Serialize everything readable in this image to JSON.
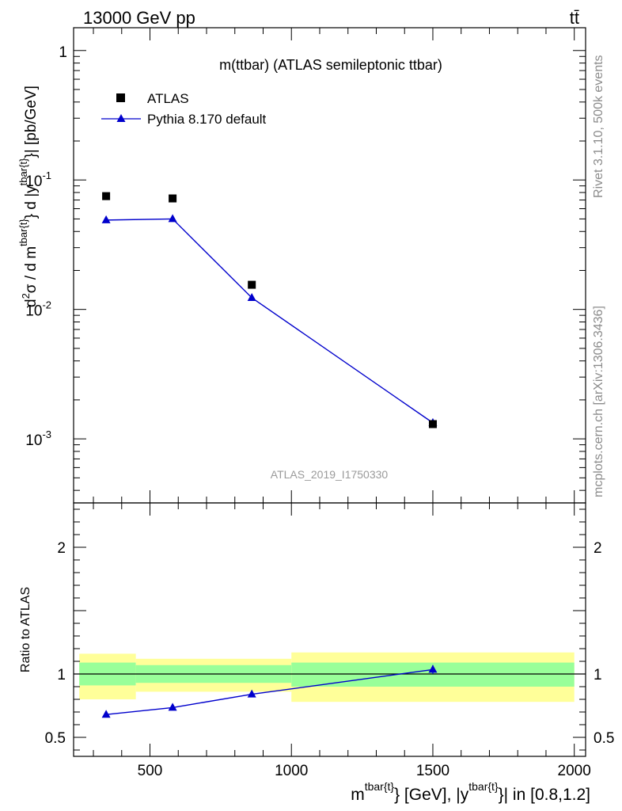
{
  "header": {
    "energy_label": "13000 GeV pp",
    "process_label": "tt̄"
  },
  "side_text": {
    "rivet": "Rivet 3.1.10,  500k events",
    "mcplots": "mcplots.cern.ch [arXiv:1306.3436]"
  },
  "chart_data": [
    {
      "type": "scatter",
      "panel": "main",
      "title": "m(ttbar) (ATLAS semileptonic ttbar)",
      "watermark": "ATLAS_2019_I1750330",
      "ylabel": "d²σ / d m^{tbar{t}} d |y^{tbar{t}}| [pb/GeV]",
      "yscale": "log",
      "xlim": [
        230,
        2040
      ],
      "ylim": [
        0.00032,
        1.5
      ],
      "ytick_labels": [
        "1",
        "10^{-1}",
        "10^{-2}",
        "10^{-3}"
      ],
      "legend": {
        "placement": "top-left",
        "entries": [
          "ATLAS",
          "Pythia 8.170 default"
        ]
      },
      "series": [
        {
          "name": "ATLAS",
          "marker": "square",
          "color": "#000000",
          "x": [
            345,
            580,
            860,
            1500
          ],
          "y": [
            0.075,
            0.072,
            0.0155,
            0.0013
          ]
        },
        {
          "name": "Pythia 8.170 default",
          "marker": "triangle",
          "color": "#0000cc",
          "x": [
            345,
            580,
            860,
            1500
          ],
          "y": [
            0.049,
            0.05,
            0.0123,
            0.00133
          ]
        }
      ]
    },
    {
      "type": "line",
      "panel": "ratio",
      "ylabel": "Ratio to ATLAS",
      "xlabel": "m^{tbar{t}} [GeV], |y^{tbar{t}}| in [0.8,1.2]",
      "ylim": [
        0.35,
        2.35
      ],
      "xticks": [
        500,
        1000,
        1500,
        2000
      ],
      "yticks": [
        0.5,
        1,
        2
      ],
      "bins": [
        {
          "xlo": 250,
          "xhi": 450,
          "band_inner": [
            0.91,
            1.09
          ],
          "band_outer": [
            0.8,
            1.16
          ]
        },
        {
          "xlo": 450,
          "xhi": 1000,
          "band_inner": [
            0.93,
            1.07
          ],
          "band_outer": [
            0.86,
            1.12
          ]
        },
        {
          "xlo": 1000,
          "xhi": 2000,
          "band_inner": [
            0.9,
            1.09
          ],
          "band_outer": [
            0.78,
            1.17
          ]
        }
      ],
      "series": [
        {
          "name": "Pythia 8.170 default / ATLAS",
          "color": "#0000cc",
          "x": [
            345,
            580,
            860,
            1500
          ],
          "y": [
            0.68,
            0.735,
            0.84,
            1.035
          ],
          "yerr": [
            0.01,
            0.01,
            0.012,
            0.035
          ]
        }
      ],
      "band_colors": {
        "inner": "#99ff99",
        "outer": "#ffff99"
      }
    }
  ]
}
